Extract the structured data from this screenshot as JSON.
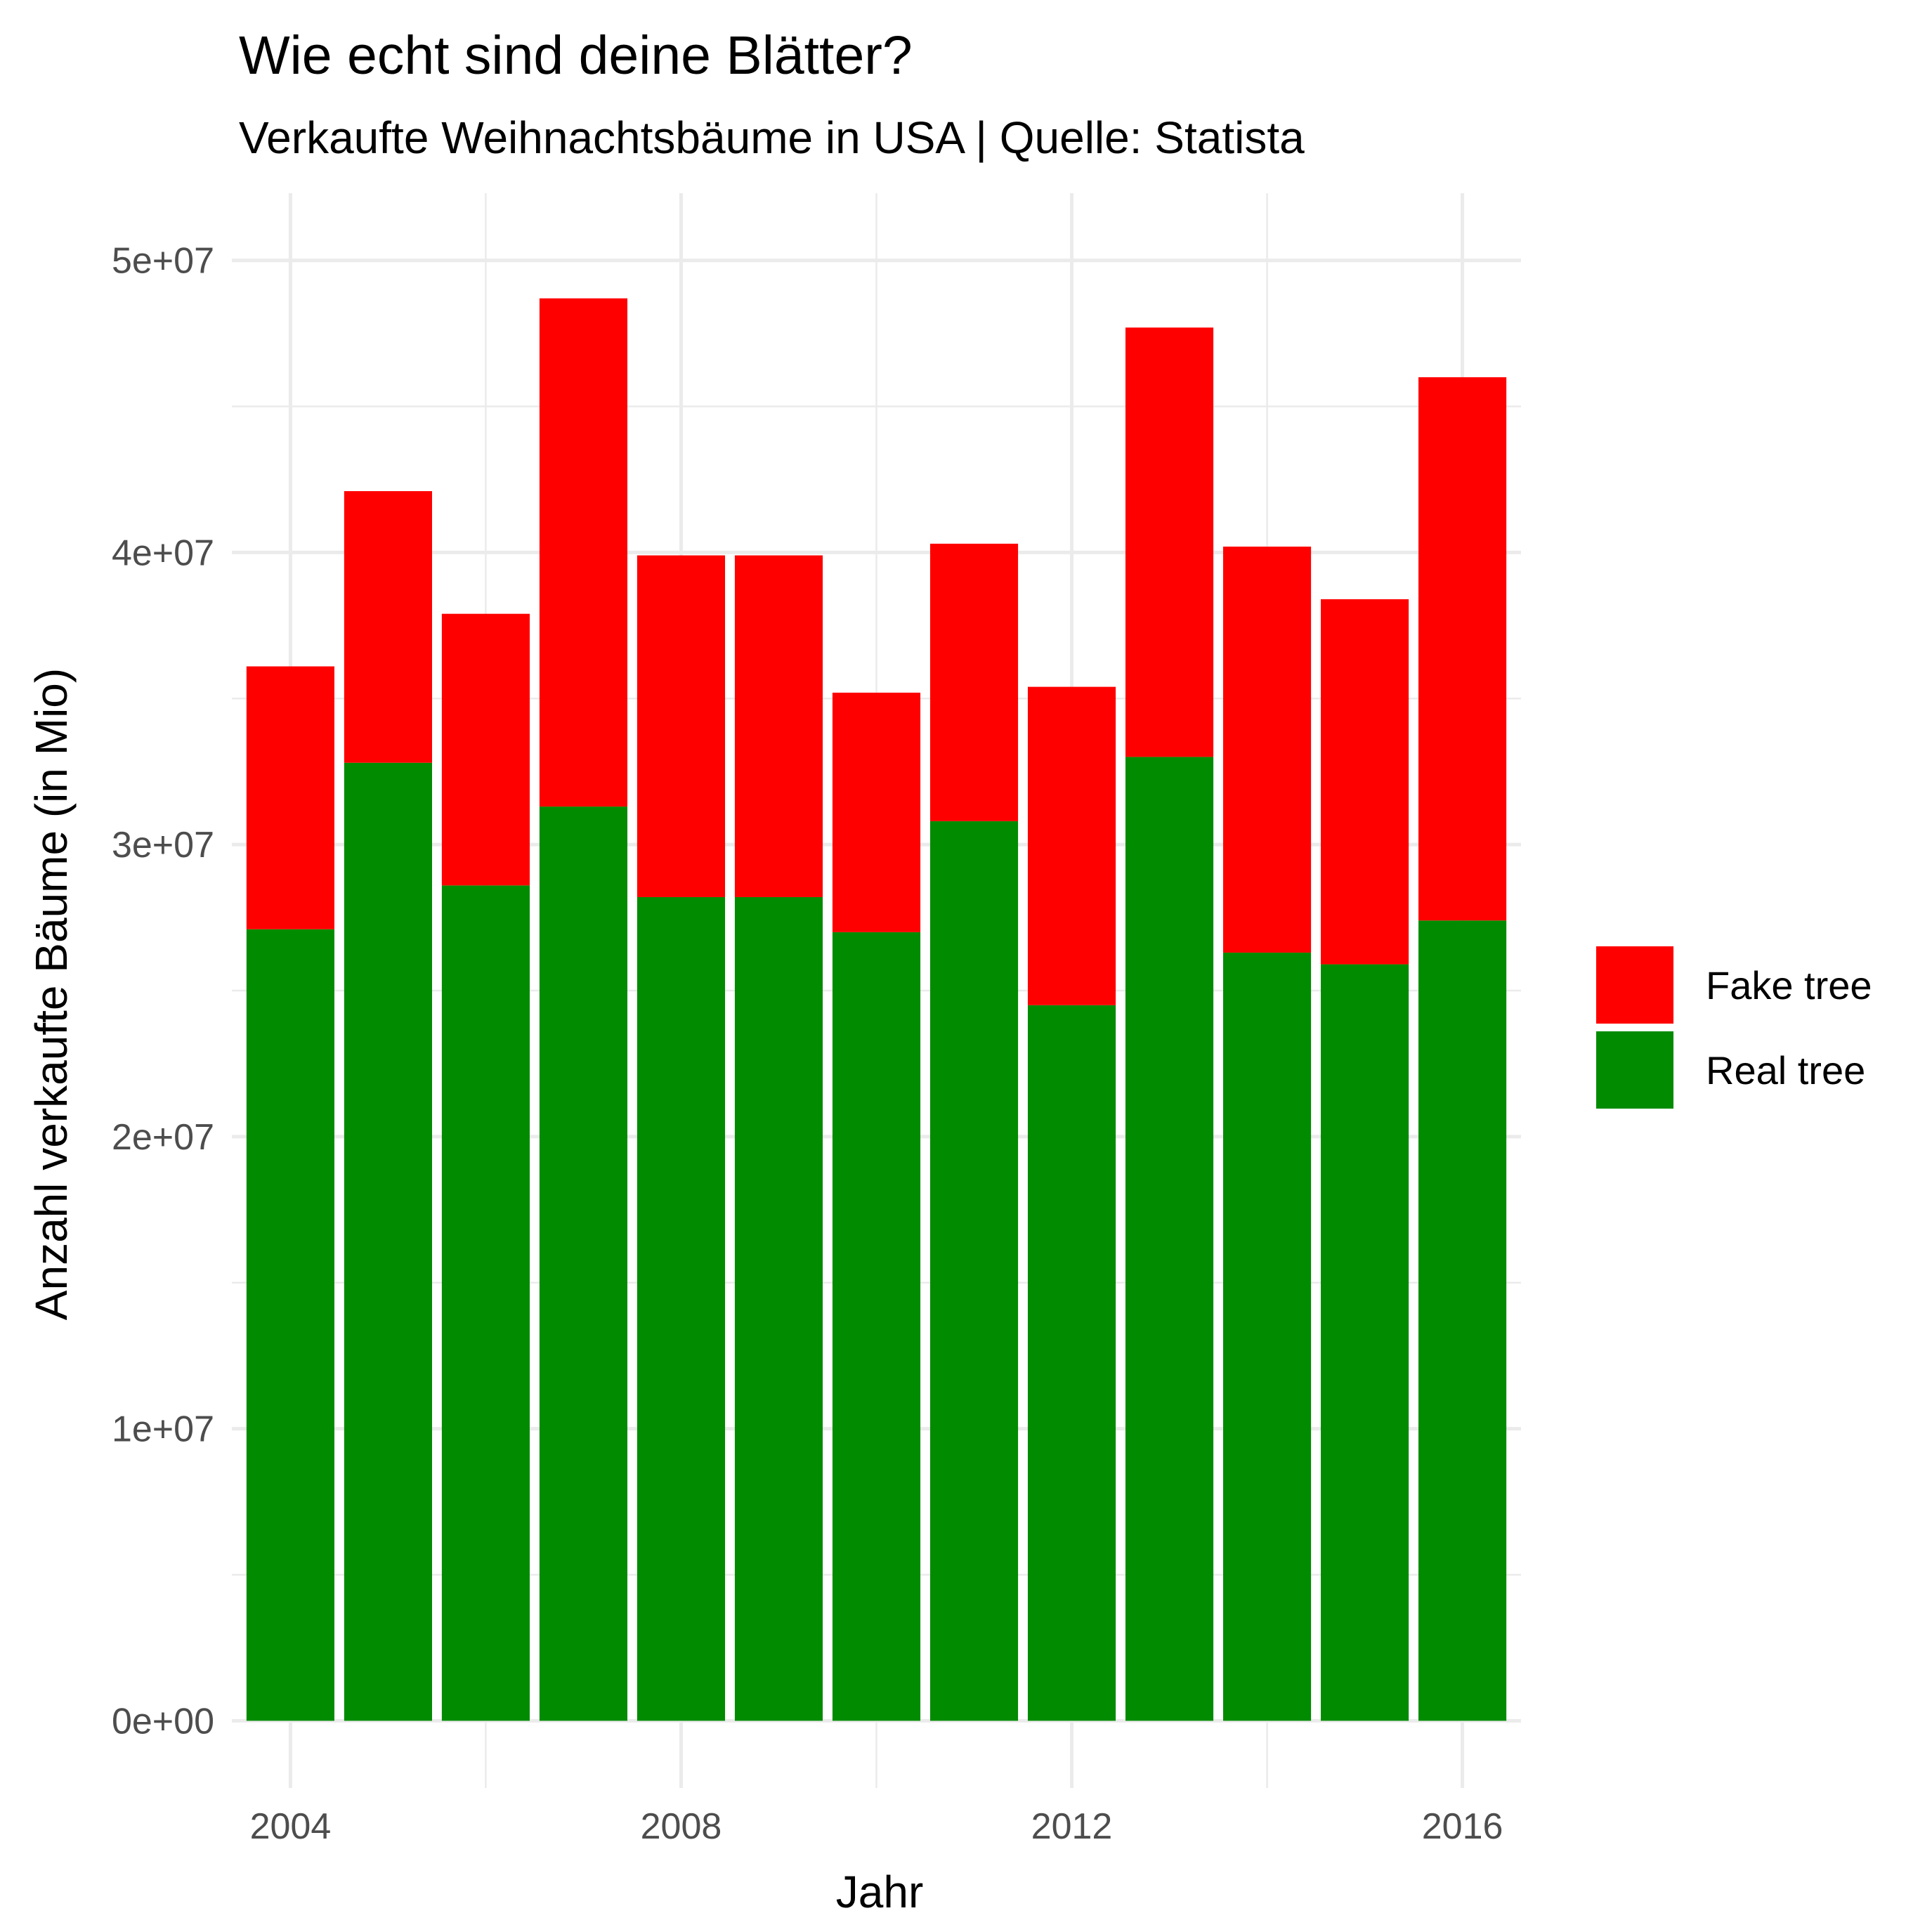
{
  "chart_data": {
    "type": "bar",
    "stacked": true,
    "title": "Wie echt sind deine Blätter?",
    "subtitle": "Verkaufte Weihnachtsbäume in USA | Quelle: Statista",
    "xlabel": "Jahr",
    "ylabel": "Anzahl verkaufte Bäume (in Mio)",
    "x": [
      2004,
      2005,
      2006,
      2007,
      2008,
      2009,
      2010,
      2011,
      2012,
      2013,
      2014,
      2015,
      2016
    ],
    "xlim": [
      2003.4,
      2016.6
    ],
    "ylim": [
      -2300000,
      52300000
    ],
    "x_ticks": [
      2004,
      2008,
      2012,
      2016
    ],
    "x_tick_labels": [
      "2004",
      "2008",
      "2012",
      "2016"
    ],
    "y_ticks": [
      0,
      10000000,
      20000000,
      30000000,
      40000000,
      50000000
    ],
    "y_tick_labels": [
      "0e+00",
      "1e+07",
      "2e+07",
      "3e+07",
      "4e+07",
      "5e+07"
    ],
    "grid": true,
    "legend_position": "right",
    "series": [
      {
        "name": "Real tree",
        "color": "#008B00",
        "values": [
          27100000,
          32800000,
          28600000,
          31300000,
          28200000,
          28200000,
          27000000,
          30800000,
          24500000,
          33000000,
          26300000,
          25900000,
          27400000
        ]
      },
      {
        "name": "Fake tree",
        "color": "#FF0000",
        "values": [
          9000000,
          9300000,
          9300000,
          17400000,
          11700000,
          11700000,
          8200000,
          9500000,
          10900000,
          14700000,
          13900000,
          12500000,
          18600000
        ]
      }
    ],
    "legend_order": [
      "Fake tree",
      "Real tree"
    ]
  }
}
